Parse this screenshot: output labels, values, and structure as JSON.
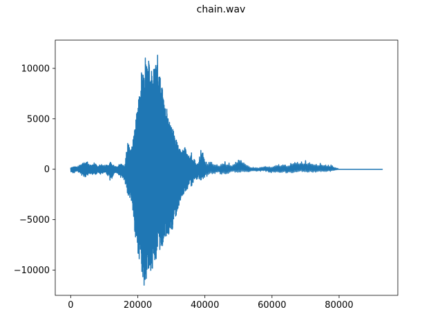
{
  "chart_data": {
    "type": "line",
    "title": "chain.wav",
    "xlabel": "",
    "ylabel": "",
    "xlim": [
      -4600,
      97500
    ],
    "ylim": [
      -12500,
      12800
    ],
    "xticks": [
      0,
      20000,
      40000,
      60000,
      80000
    ],
    "xtick_labels": [
      "0",
      "20000",
      "40000",
      "60000",
      "80000"
    ],
    "yticks": [
      -10000,
      -5000,
      0,
      5000,
      10000
    ],
    "ytick_labels": [
      "−10000",
      "−5000",
      "0",
      "5000",
      "10000"
    ],
    "grid": false,
    "series": [
      {
        "color": "#1f77b4",
        "sample_rate_note": "",
        "x": [
          0,
          1000,
          2000,
          3000,
          4000,
          5000,
          6000,
          7000,
          8000,
          9000,
          10000,
          11000,
          12000,
          13000,
          14000,
          15000,
          16000,
          17000,
          18000,
          19000,
          20000,
          21000,
          22000,
          23000,
          24000,
          25000,
          26000,
          27000,
          28000,
          29000,
          30000,
          31000,
          32000,
          33000,
          34000,
          35000,
          36000,
          37000,
          38000,
          39000,
          40000,
          42000,
          44000,
          46000,
          48000,
          50000,
          52000,
          54000,
          56000,
          58000,
          60000,
          62000,
          64000,
          66000,
          68000,
          70000,
          72000,
          74000,
          76000,
          78000,
          80000,
          93000
        ],
        "max": [
          200,
          300,
          250,
          500,
          900,
          800,
          400,
          700,
          300,
          600,
          400,
          500,
          800,
          350,
          300,
          850,
          300,
          2700,
          1800,
          3900,
          6500,
          9500,
          11800,
          11000,
          10500,
          10000,
          11500,
          8500,
          7000,
          5500,
          4300,
          3600,
          2400,
          1700,
          2200,
          1300,
          1700,
          900,
          500,
          2300,
          800,
          700,
          400,
          800,
          500,
          1100,
          500,
          200,
          150,
          300,
          200,
          500,
          450,
          600,
          800,
          900,
          700,
          600,
          500,
          400,
          0,
          0
        ],
        "min": [
          -300,
          -400,
          -200,
          -500,
          -800,
          -700,
          -500,
          -600,
          -400,
          -500,
          -300,
          -600,
          -1400,
          -600,
          -400,
          -900,
          -1100,
          -2500,
          -3000,
          -6000,
          -8500,
          -9600,
          -12100,
          -11000,
          -10000,
          -9500,
          -8300,
          -8000,
          -7000,
          -6500,
          -6600,
          -5000,
          -4000,
          -2800,
          -2300,
          -1900,
          -1800,
          -1400,
          -900,
          -1200,
          -900,
          -500,
          -400,
          -700,
          -300,
          -300,
          -300,
          -250,
          -200,
          -200,
          -400,
          -300,
          -400,
          -400,
          -200,
          -300,
          -300,
          -300,
          -250,
          -200,
          0,
          0
        ]
      }
    ]
  }
}
